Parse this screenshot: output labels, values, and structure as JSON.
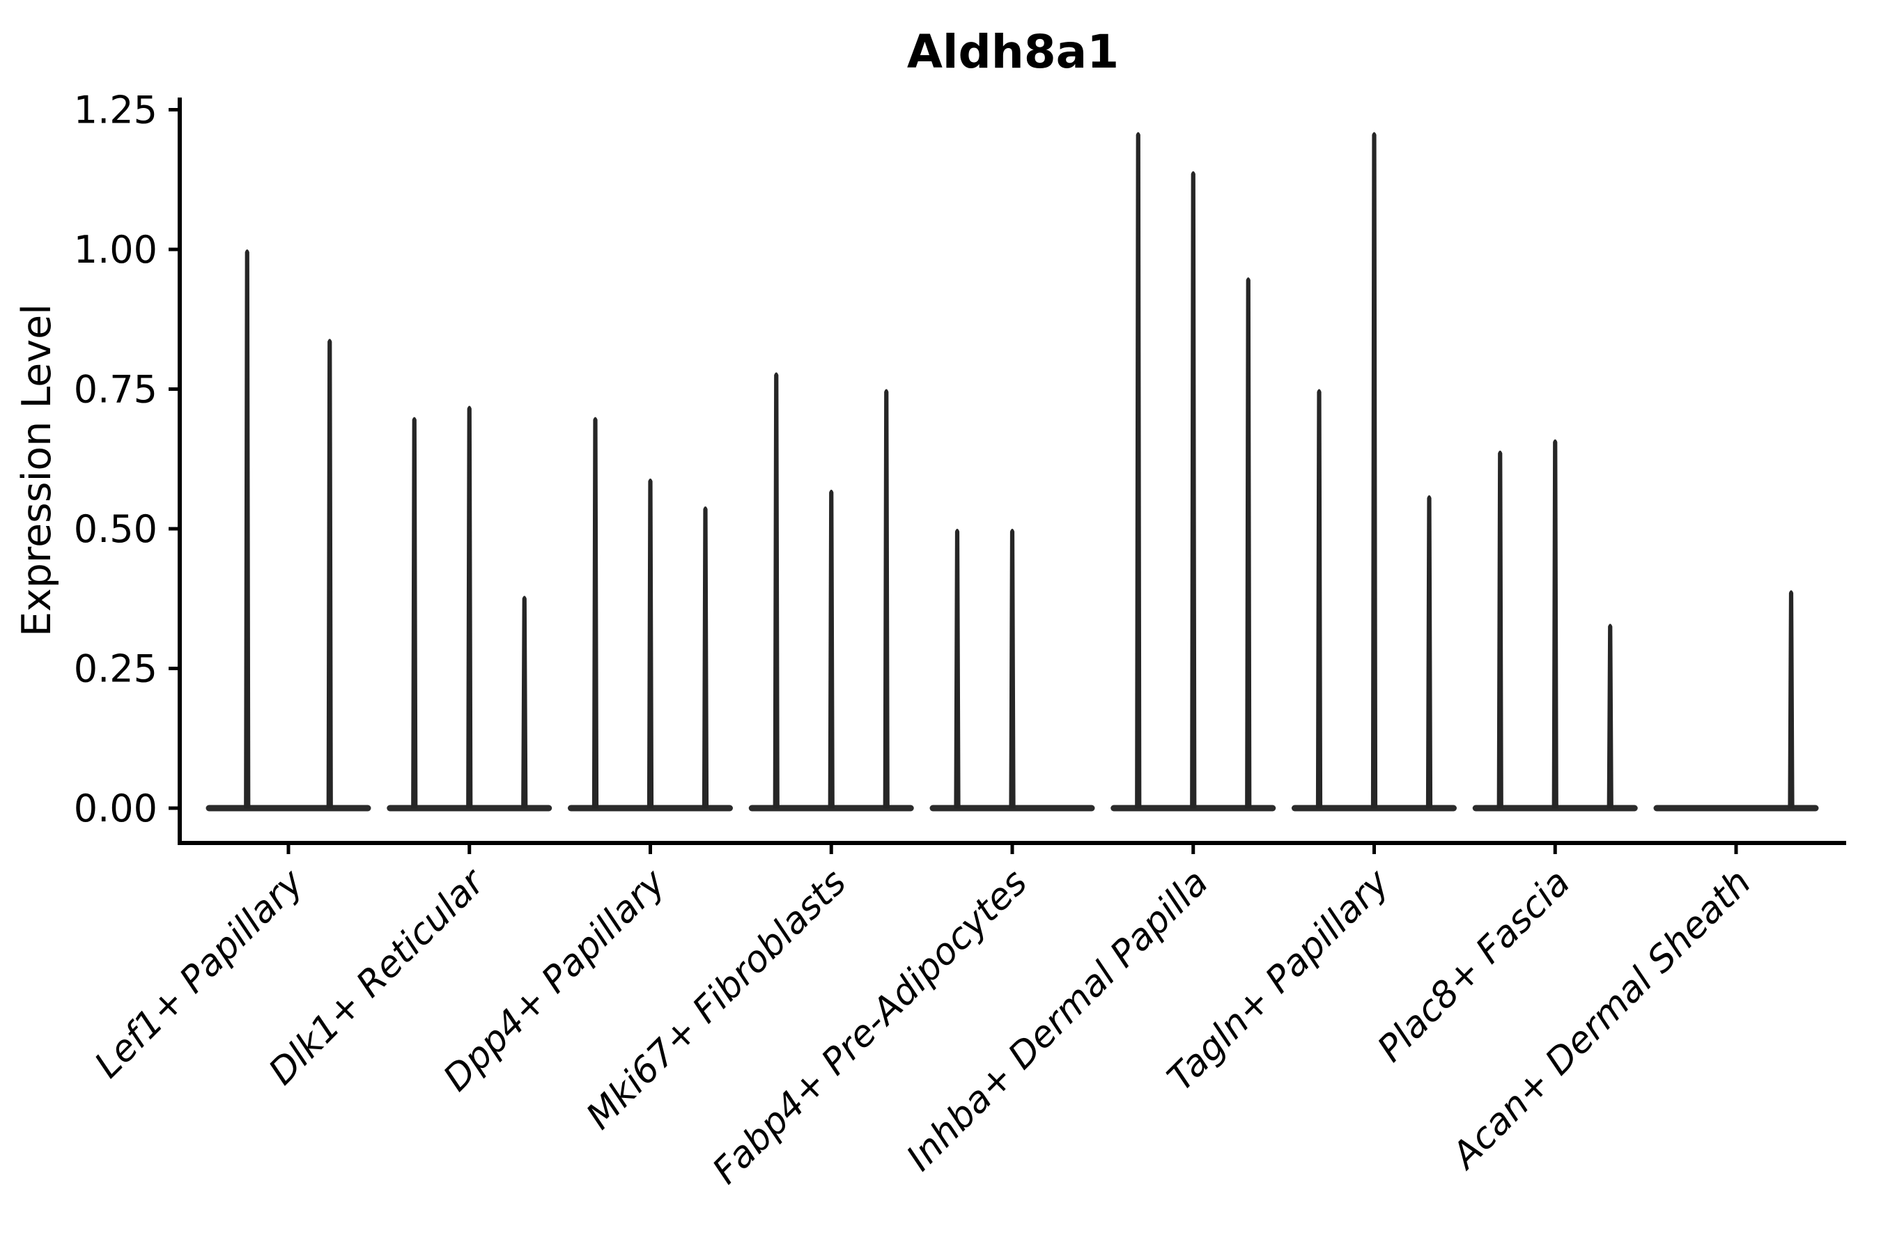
{
  "figure": {
    "title": "Aldh8a1",
    "ylabel": "Expression Level"
  },
  "chart_data": {
    "type": "violin",
    "title": "Aldh8a1",
    "xlabel": "",
    "ylabel": "Expression Level",
    "ylim": [
      0,
      1.27
    ],
    "yticks": [
      "0.00",
      "0.25",
      "0.50",
      "0.75",
      "1.00",
      "1.25"
    ],
    "grid": "off",
    "legend": "none",
    "categories": [
      "Lef1+ Papillary",
      "Dlk1+ Reticular",
      "Dpp4+ Papillary",
      "Mki67+ Fibroblasts",
      "Fabp4+ Pre-Adipocytes",
      "Inhba+ Dermal Papilla",
      "Tagln+ Papillary",
      "Plac8+ Fascia",
      "Acan+ Dermal Sheath"
    ],
    "groups": [
      {
        "category": "Lef1+ Papillary",
        "violin_max_values": [
          1.0,
          0.84
        ]
      },
      {
        "category": "Dlk1+ Reticular",
        "violin_max_values": [
          0.7,
          0.72,
          0.38
        ]
      },
      {
        "category": "Dpp4+ Papillary",
        "violin_max_values": [
          0.7,
          0.59,
          0.54
        ]
      },
      {
        "category": "Mki67+ Fibroblasts",
        "violin_max_values": [
          0.78,
          0.57,
          0.75
        ]
      },
      {
        "category": "Fabp4+ Pre-Adipocytes",
        "violin_max_values": [
          0.5,
          0.5,
          0.0
        ]
      },
      {
        "category": "Inhba+ Dermal Papilla",
        "violin_max_values": [
          1.21,
          1.14,
          0.95
        ]
      },
      {
        "category": "Tagln+ Papillary",
        "violin_max_values": [
          0.75,
          1.21,
          0.56
        ]
      },
      {
        "category": "Plac8+ Fascia",
        "violin_max_values": [
          0.64,
          0.66,
          0.33
        ]
      },
      {
        "category": "Acan+ Dermal Sheath",
        "violin_max_values": [
          0.0,
          0.0,
          0.39
        ]
      }
    ],
    "violin_note": "violins are near-zero-width spikes; wide flat base at y=0, thin tail up to max value",
    "colors": {
      "violin": "#262626",
      "baseline": "#2b2b2b",
      "axis": "#000000",
      "text": "#000000",
      "background": "#ffffff"
    }
  }
}
